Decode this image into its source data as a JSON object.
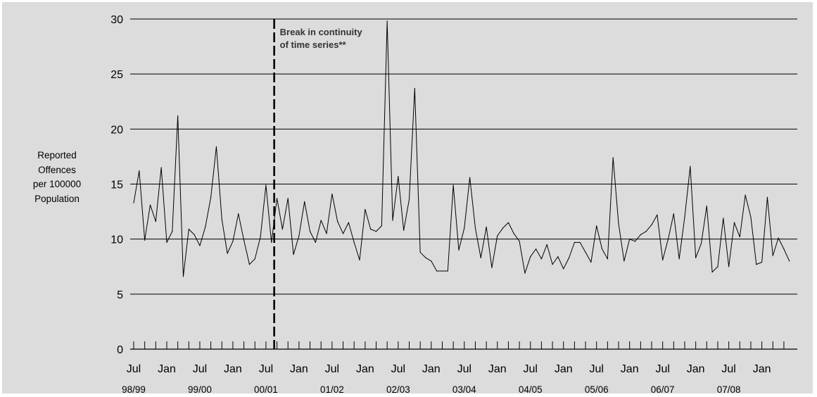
{
  "chart_data": {
    "type": "line",
    "title": "",
    "ylabel_lines": [
      "Reported",
      "Offences",
      "per 100000",
      "Population"
    ],
    "xlabel": "",
    "ylim": [
      0,
      30
    ],
    "y_ticks": [
      "0",
      "5",
      "10",
      "15",
      "20",
      "25",
      "30"
    ],
    "grid": "horizontal",
    "x_month_labels": [
      "Jul",
      "Jan",
      "Jul",
      "Jan",
      "Jul",
      "Jan",
      "Jul",
      "Jan",
      "Jul",
      "Jan",
      "Jul",
      "Jan",
      "Jul",
      "Jan",
      "Jul",
      "Jan",
      "Jul",
      "Jan",
      "Jul",
      "Jan"
    ],
    "x_year_labels": [
      "98/99",
      "99/00",
      "00/01",
      "01/02",
      "02/03",
      "03/04",
      "04/05",
      "05/06",
      "06/07",
      "07/08"
    ],
    "break_after_month_index": 25,
    "annotation_lines": [
      "Break in continuity",
      "of time series**"
    ],
    "series": [
      {
        "values": [
          13.3,
          16.2,
          9.9,
          13.1,
          11.6,
          16.5,
          9.7,
          10.7,
          21.2,
          6.6,
          10.9,
          10.4,
          9.4,
          11.1,
          13.8,
          18.4,
          11.8,
          8.7,
          9.8,
          12.3,
          9.9,
          7.7,
          8.2,
          10.2,
          14.9,
          9.7,
          13.7,
          10.9,
          13.7,
          8.6,
          10.3,
          13.4,
          10.7,
          9.7,
          11.7,
          10.5,
          14.1,
          11.6,
          10.5,
          11.5,
          9.7,
          8.1,
          12.7,
          10.9,
          10.7,
          11.2,
          29.8,
          11.7,
          15.7,
          10.8,
          13.6,
          23.7,
          8.8,
          8.3,
          8.0,
          7.1,
          7.1,
          7.1,
          14.9,
          9.0,
          11.0,
          15.6,
          11.0,
          8.3,
          11.1,
          7.4,
          10.3,
          11.0,
          11.5,
          10.5,
          9.8,
          6.9,
          8.4,
          9.1,
          8.2,
          9.5,
          7.7,
          8.4,
          7.3,
          8.3,
          9.7,
          9.7,
          8.8,
          7.9,
          11.2,
          9.1,
          8.2,
          17.4,
          11.4,
          8.0,
          10.0,
          9.8,
          10.4,
          10.7,
          11.3,
          12.2,
          8.1,
          10.0,
          12.3,
          8.2,
          12.0,
          16.6,
          8.3,
          9.6,
          13.0,
          7.0,
          7.5,
          11.9,
          7.5,
          11.5,
          10.2,
          14.0,
          12.0,
          7.7,
          7.9,
          13.8,
          8.5,
          10.1,
          9.1,
          8.0
        ]
      }
    ]
  }
}
